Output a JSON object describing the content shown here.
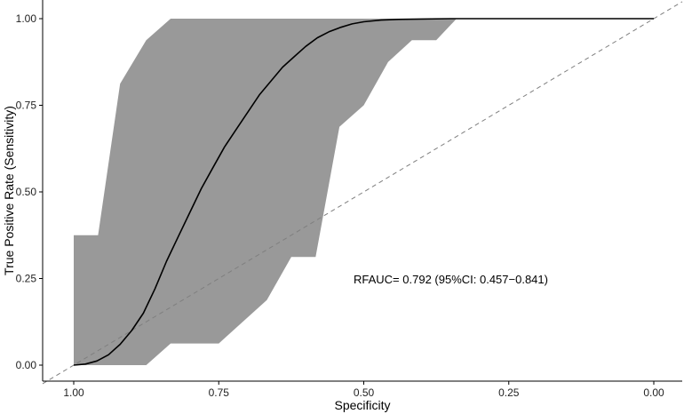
{
  "chart_data": {
    "type": "line",
    "title": "",
    "xlabel": "Specificity",
    "ylabel": "True Positive Rate (Sensitivity)",
    "x_reversed": true,
    "xlim": [
      1.0,
      0.0
    ],
    "ylim": [
      0.0,
      1.0
    ],
    "x_ticks": [
      {
        "value": 1.0,
        "label": "1.00"
      },
      {
        "value": 0.75,
        "label": "0.75"
      },
      {
        "value": 0.5,
        "label": "0.50"
      },
      {
        "value": 0.25,
        "label": "0.25"
      },
      {
        "value": 0.0,
        "label": "0.00"
      }
    ],
    "y_ticks": [
      {
        "value": 0.0,
        "label": "0.00"
      },
      {
        "value": 0.25,
        "label": "0.25"
      },
      {
        "value": 0.5,
        "label": "0.50"
      },
      {
        "value": 0.75,
        "label": "0.75"
      },
      {
        "value": 1.0,
        "label": "1.00"
      }
    ],
    "grid": false,
    "annotation": "RFAUC= 0.792 (95%CI: 0.457−0.841)",
    "colors": {
      "curve": "#000000",
      "ci_band": "#999999",
      "reference": "#7f7f7f",
      "axis": "#000000"
    },
    "ci_upper": [
      {
        "x": 1.0,
        "y": 0.0
      },
      {
        "x": 1.0,
        "y": 0.375
      },
      {
        "x": 0.958,
        "y": 0.375
      },
      {
        "x": 0.92,
        "y": 0.812
      },
      {
        "x": 0.875,
        "y": 0.938
      },
      {
        "x": 0.833,
        "y": 1.0
      },
      {
        "x": 0.34,
        "y": 1.0
      }
    ],
    "ci_lower": [
      {
        "x": 0.34,
        "y": 1.0
      },
      {
        "x": 0.375,
        "y": 0.938
      },
      {
        "x": 0.417,
        "y": 0.938
      },
      {
        "x": 0.458,
        "y": 0.875
      },
      {
        "x": 0.5,
        "y": 0.75
      },
      {
        "x": 0.542,
        "y": 0.688
      },
      {
        "x": 0.583,
        "y": 0.312
      },
      {
        "x": 0.625,
        "y": 0.312
      },
      {
        "x": 0.667,
        "y": 0.188
      },
      {
        "x": 0.75,
        "y": 0.0625
      },
      {
        "x": 0.833,
        "y": 0.0625
      },
      {
        "x": 0.875,
        "y": 0.0
      },
      {
        "x": 1.0,
        "y": 0.0
      }
    ],
    "roc_curve": [
      {
        "x": 1.0,
        "y": 0.0
      },
      {
        "x": 0.98,
        "y": 0.003
      },
      {
        "x": 0.96,
        "y": 0.012
      },
      {
        "x": 0.94,
        "y": 0.03
      },
      {
        "x": 0.92,
        "y": 0.06
      },
      {
        "x": 0.9,
        "y": 0.1
      },
      {
        "x": 0.88,
        "y": 0.15
      },
      {
        "x": 0.86,
        "y": 0.22
      },
      {
        "x": 0.84,
        "y": 0.3
      },
      {
        "x": 0.82,
        "y": 0.37
      },
      {
        "x": 0.8,
        "y": 0.44
      },
      {
        "x": 0.78,
        "y": 0.51
      },
      {
        "x": 0.76,
        "y": 0.57
      },
      {
        "x": 0.74,
        "y": 0.63
      },
      {
        "x": 0.72,
        "y": 0.68
      },
      {
        "x": 0.7,
        "y": 0.73
      },
      {
        "x": 0.68,
        "y": 0.78
      },
      {
        "x": 0.66,
        "y": 0.82
      },
      {
        "x": 0.64,
        "y": 0.86
      },
      {
        "x": 0.62,
        "y": 0.89
      },
      {
        "x": 0.6,
        "y": 0.92
      },
      {
        "x": 0.58,
        "y": 0.945
      },
      {
        "x": 0.56,
        "y": 0.962
      },
      {
        "x": 0.54,
        "y": 0.975
      },
      {
        "x": 0.52,
        "y": 0.985
      },
      {
        "x": 0.5,
        "y": 0.991
      },
      {
        "x": 0.47,
        "y": 0.996
      },
      {
        "x": 0.44,
        "y": 0.998
      },
      {
        "x": 0.4,
        "y": 0.999
      },
      {
        "x": 0.35,
        "y": 1.0
      },
      {
        "x": 0.3,
        "y": 1.0
      },
      {
        "x": 0.2,
        "y": 1.0
      },
      {
        "x": 0.1,
        "y": 1.0
      },
      {
        "x": 0.0,
        "y": 1.0
      }
    ],
    "reference_line": [
      {
        "x": 1.0,
        "y": 0.0
      },
      {
        "x": 0.0,
        "y": 1.0
      }
    ]
  }
}
